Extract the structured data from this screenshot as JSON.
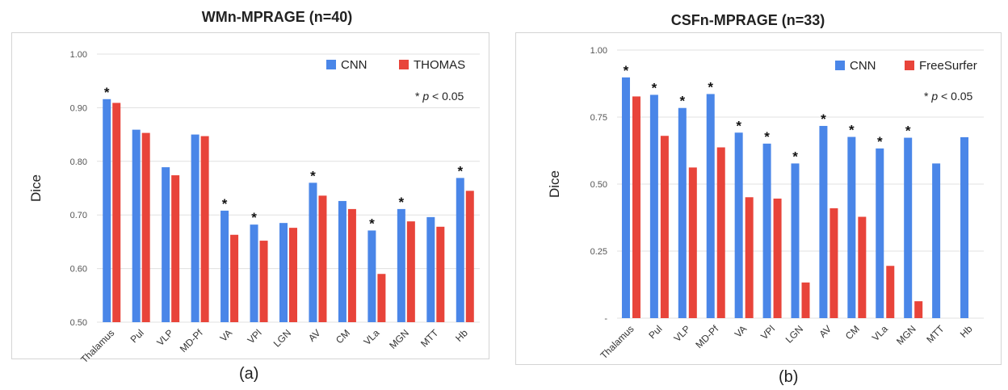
{
  "colors": {
    "cnn": "#4a86e8",
    "compare": "#e8443a",
    "grid": "#e0e0e0"
  },
  "charts": {
    "a": {
      "caption": "(a)",
      "significance_note": "* p < 0.05",
      "significance_prefix": "* ",
      "significance_p": "p",
      "significance_rest": " < 0.05"
    },
    "b": {
      "caption": "(b)",
      "significance_note": "* p < 0.05",
      "significance_prefix": "* ",
      "significance_p": "p",
      "significance_rest": " < 0.05"
    }
  },
  "chart_data": [
    {
      "type": "bar",
      "title": "WMn-MPRAGE (n=40)",
      "ylabel": "Dice",
      "xlabel": "",
      "ylim": [
        0.5,
        1.0
      ],
      "yticks": [
        0.5,
        0.6,
        0.7,
        0.8,
        0.9,
        1.0
      ],
      "ytick_labels": [
        "0.50",
        "0.60",
        "0.70",
        "0.80",
        "0.90",
        "1.00"
      ],
      "grid": true,
      "legend_position": "top-right",
      "categories": [
        "Thalamus",
        "Pul",
        "VLP",
        "MD-Pf",
        "VA",
        "VPl",
        "LGN",
        "AV",
        "CM",
        "VLa",
        "MGN",
        "MTT",
        "Hb"
      ],
      "series": [
        {
          "name": "CNN",
          "values": [
            0.916,
            0.859,
            0.789,
            0.85,
            0.708,
            0.682,
            0.685,
            0.76,
            0.726,
            0.671,
            0.711,
            0.696,
            0.769
          ]
        },
        {
          "name": "THOMAS",
          "values": [
            0.909,
            0.853,
            0.774,
            0.847,
            0.663,
            0.652,
            0.676,
            0.736,
            0.711,
            0.59,
            0.688,
            0.678,
            0.745
          ]
        }
      ],
      "significant": [
        true,
        false,
        false,
        false,
        true,
        true,
        false,
        true,
        false,
        true,
        true,
        false,
        true
      ]
    },
    {
      "type": "bar",
      "title": "CSFn-MPRAGE (n=33)",
      "ylabel": "Dice",
      "xlabel": "",
      "ylim": [
        0,
        1.0
      ],
      "yticks": [
        0,
        0.25,
        0.5,
        0.75,
        1.0
      ],
      "ytick_labels": [
        "-",
        "0.25",
        "0.50",
        "0.75",
        "1.00"
      ],
      "grid": true,
      "legend_position": "top-right",
      "categories": [
        "Thalamus",
        "Pul",
        "VLP",
        "MD-Pf",
        "VA",
        "VPl",
        "LGN",
        "AV",
        "CM",
        "VLa",
        "MGN",
        "MTT",
        "Hb"
      ],
      "series": [
        {
          "name": "CNN",
          "values": [
            0.898,
            0.833,
            0.784,
            0.836,
            0.692,
            0.651,
            0.577,
            0.717,
            0.676,
            0.633,
            0.673,
            0.577,
            0.675
          ]
        },
        {
          "name": "FreeSurfer",
          "values": [
            0.827,
            0.68,
            0.562,
            0.637,
            0.451,
            0.446,
            0.133,
            0.41,
            0.378,
            0.195,
            0.063,
            null,
            null
          ]
        }
      ],
      "significant": [
        true,
        true,
        true,
        true,
        true,
        true,
        true,
        true,
        true,
        true,
        true,
        false,
        false
      ]
    }
  ]
}
